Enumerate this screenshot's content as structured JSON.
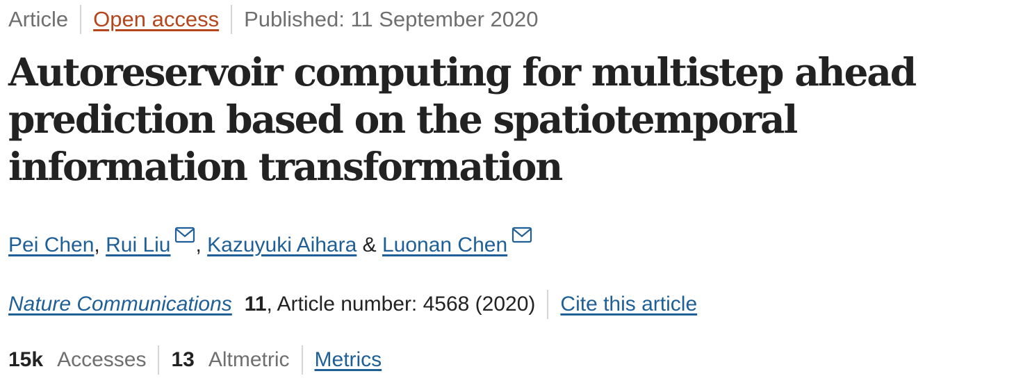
{
  "meta": {
    "type": "Article",
    "access": "Open access",
    "published": "Published: 11 September 2020"
  },
  "title": "Autoreservoir computing for multistep ahead prediction based on the spatiotemporal information transformation",
  "authors": [
    {
      "name": "Pei Chen",
      "email_icon": false
    },
    {
      "name": "Rui Liu",
      "email_icon": true
    },
    {
      "name": "Kazuyuki Aihara",
      "email_icon": false
    },
    {
      "name": "Luonan Chen",
      "email_icon": true
    }
  ],
  "author_separators": [
    ", ",
    ", ",
    " & "
  ],
  "icons": {
    "email": "envelope-icon"
  },
  "citation": {
    "journal": "Nature Communications",
    "volume": "11",
    "details": ", Article number: 4568 (2020)",
    "cite_link": "Cite this article"
  },
  "metrics": {
    "accesses_value": "15k",
    "accesses_label": "Accesses",
    "altmetric_value": "13",
    "altmetric_label": "Altmetric",
    "metrics_link": "Metrics"
  },
  "colors": {
    "text": "#222222",
    "muted": "#6f6f6f",
    "link_blue": "#1f5f97",
    "open_access_orange": "#b5451b",
    "separator": "#d5d5d5"
  }
}
